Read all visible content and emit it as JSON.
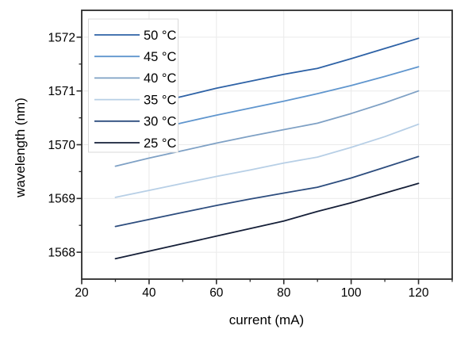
{
  "chart_data": {
    "type": "line",
    "title": "",
    "xlabel": "current (mA)",
    "ylabel": "wavelength (nm)",
    "xlim": [
      20,
      130
    ],
    "ylim": [
      1567.5,
      1572.5
    ],
    "x_major_ticks": [
      20,
      40,
      60,
      80,
      100,
      120
    ],
    "x_minor_ticks": [
      30,
      50,
      70,
      90,
      110,
      130
    ],
    "y_major_ticks": [
      1568,
      1569,
      1570,
      1571,
      1572
    ],
    "y_minor_ticks": [
      1568.5,
      1569.5,
      1570.5,
      1571.5
    ],
    "grid": true,
    "legend_position": "upper-left",
    "x": [
      30,
      40,
      50,
      60,
      70,
      80,
      90,
      100,
      110,
      120
    ],
    "series": [
      {
        "name": "50 °C",
        "color": "#2e62a6",
        "values": [
          1570.6,
          1570.76,
          1570.9,
          1571.05,
          1571.18,
          1571.31,
          1571.42,
          1571.6,
          1571.79,
          1571.98
        ]
      },
      {
        "name": "45 °C",
        "color": "#6096ce",
        "values": [
          1570.1,
          1570.26,
          1570.41,
          1570.55,
          1570.68,
          1570.81,
          1570.95,
          1571.1,
          1571.27,
          1571.45
        ]
      },
      {
        "name": "40 °C",
        "color": "#7fa1c5",
        "values": [
          1569.6,
          1569.75,
          1569.89,
          1570.03,
          1570.16,
          1570.28,
          1570.4,
          1570.58,
          1570.78,
          1571.0
        ]
      },
      {
        "name": "35 °C",
        "color": "#b7cfe6",
        "values": [
          1569.02,
          1569.15,
          1569.28,
          1569.41,
          1569.53,
          1569.66,
          1569.77,
          1569.95,
          1570.15,
          1570.38
        ]
      },
      {
        "name": "30 °C",
        "color": "#2d4d7e",
        "values": [
          1568.48,
          1568.61,
          1568.74,
          1568.87,
          1568.99,
          1569.1,
          1569.21,
          1569.38,
          1569.58,
          1569.78
        ]
      },
      {
        "name": "25 °C",
        "color": "#151f38",
        "values": [
          1567.88,
          1568.02,
          1568.16,
          1568.3,
          1568.44,
          1568.58,
          1568.76,
          1568.92,
          1569.1,
          1569.28
        ]
      }
    ],
    "styles": {
      "frame_color": "#2b2b2b",
      "grid_color": "#eaeaea",
      "legend_border": "#d9d9d9",
      "background": "#ffffff",
      "text_color": "#000000"
    }
  }
}
